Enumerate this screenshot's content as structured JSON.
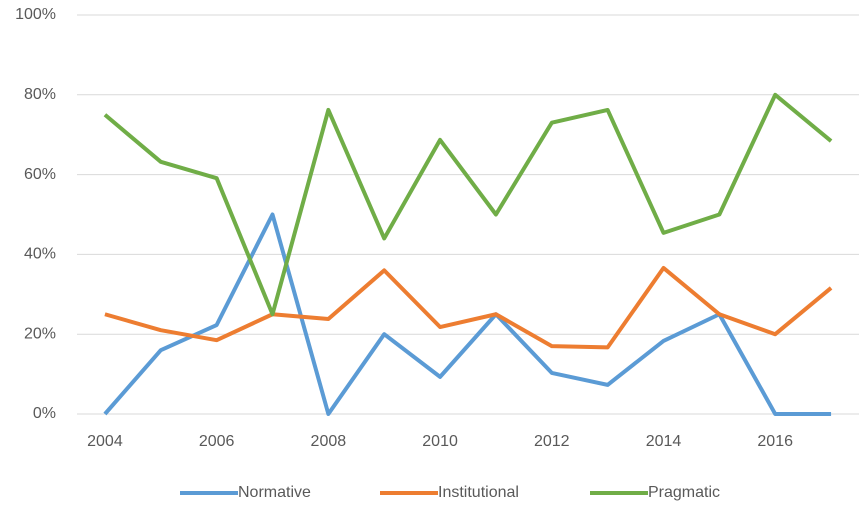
{
  "chart_data": {
    "type": "line",
    "x": [
      2004,
      2005,
      2006,
      2007,
      2008,
      2009,
      2010,
      2011,
      2012,
      2013,
      2014,
      2015,
      2016,
      2017
    ],
    "series": [
      {
        "name": "Normative",
        "color": "#5b9bd5",
        "values": [
          0,
          16,
          22.3,
          50,
          0,
          20,
          9.3,
          25,
          10.3,
          7.3,
          18.3,
          25,
          0,
          0
        ]
      },
      {
        "name": "Institutional",
        "color": "#ed7d31",
        "values": [
          25,
          21,
          18.5,
          25,
          23.8,
          36,
          21.8,
          25,
          17,
          16.7,
          36.6,
          25,
          20,
          31.6
        ]
      },
      {
        "name": "Pragmatic",
        "color": "#70ad47",
        "values": [
          75,
          63.2,
          59.1,
          25,
          76.2,
          44,
          68.7,
          50,
          73,
          76.2,
          45.4,
          50,
          80,
          68.4
        ]
      }
    ],
    "xlim": [
      2003.5,
      2017.5
    ],
    "xticks": [
      2004,
      2006,
      2008,
      2010,
      2012,
      2014,
      2016
    ],
    "ylim": [
      0,
      100
    ],
    "yticks": [
      {
        "value": 0,
        "label": "0%"
      },
      {
        "value": 20,
        "label": "20%"
      },
      {
        "value": 40,
        "label": "40%"
      },
      {
        "value": 60,
        "label": "60%"
      },
      {
        "value": 80,
        "label": "80%"
      },
      {
        "value": 100,
        "label": "100%"
      }
    ],
    "grid": true,
    "legend": "bottom"
  }
}
